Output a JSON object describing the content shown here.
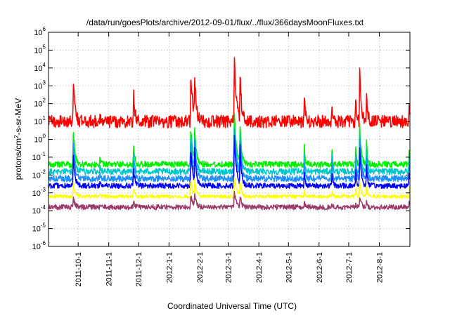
{
  "chart_data": {
    "type": "line",
    "title": "/data/run/goesPlots/archive/2012-09-01/flux/../flux/366daysMoonFluxes.txt",
    "xlabel": "Coordinated Universal Time (UTC)",
    "ylabel_parts": {
      "base": "protons/cm",
      "sup": "2",
      "rest": "-s-sr-MeV"
    },
    "x_range": [
      "2011-09-01",
      "2012-09-01"
    ],
    "x_ticks": [
      "2011-10-1",
      "2011-11-1",
      "2011-12-1",
      "2012-1-1",
      "2012-2-1",
      "2012-3-1",
      "2012-4-1",
      "2012-5-1",
      "2012-6-1",
      "2012-7-1",
      "2012-8-1"
    ],
    "y_scale": "log",
    "y_exponents": [
      -6,
      -5,
      -4,
      -3,
      -2,
      -1,
      0,
      1,
      2,
      3,
      4,
      5,
      6
    ],
    "y_tick_base": "10",
    "grid": true,
    "legend": "none",
    "events": [
      {
        "date": "2011-09-26",
        "height": 1.0
      },
      {
        "date": "2011-10-23",
        "height": 0.5
      },
      {
        "date": "2011-11-26",
        "height": 0.8
      },
      {
        "date": "2012-01-23",
        "height": 1.2
      },
      {
        "date": "2012-01-27",
        "height": 1.0
      },
      {
        "date": "2012-03-07",
        "height": 1.3
      },
      {
        "date": "2012-03-13",
        "height": 0.9
      },
      {
        "date": "2012-05-17",
        "height": 0.6
      },
      {
        "date": "2012-06-14",
        "height": 0.5
      },
      {
        "date": "2012-07-08",
        "height": 0.5
      },
      {
        "date": "2012-07-12",
        "height": 0.9
      },
      {
        "date": "2012-07-19",
        "height": 0.6
      },
      {
        "date": "2012-08-31",
        "height": 0.7
      }
    ],
    "series": [
      {
        "color": "#ff0000",
        "base": 1.0,
        "noise": 0.7,
        "peaks": [
          2.7,
          0.5,
          1.8,
          2.9,
          2.3,
          3.9,
          2.7,
          1.4,
          1.3,
          1.5,
          3.0,
          1.7,
          1.4
        ]
      },
      {
        "color": "#00ee00",
        "base": -1.4,
        "noise": 0.35,
        "peaks": [
          2.2,
          0.4,
          1.3,
          2.3,
          1.8,
          3.1,
          2.2,
          1.0,
          1.0,
          1.2,
          2.5,
          1.4,
          1.0
        ]
      },
      {
        "color": "#00c8c8",
        "base": -1.8,
        "noise": 0.35,
        "peaks": [
          2.0,
          0.4,
          1.2,
          2.2,
          1.7,
          3.0,
          2.1,
          0.9,
          0.9,
          1.1,
          2.4,
          1.3,
          0.9
        ]
      },
      {
        "color": "#1f8fff",
        "base": -2.2,
        "noise": 0.35,
        "peaks": [
          2.2,
          0.4,
          1.3,
          2.4,
          1.9,
          3.2,
          2.3,
          1.0,
          1.0,
          1.2,
          2.6,
          1.4,
          1.0
        ]
      },
      {
        "color": "#0000ff",
        "base": -2.6,
        "noise": 0.3,
        "peaks": [
          2.0,
          0.3,
          1.2,
          2.3,
          1.8,
          3.1,
          2.2,
          0.9,
          0.9,
          1.1,
          2.4,
          1.3,
          0.9
        ]
      },
      {
        "color": "#ffff00",
        "base": -3.2,
        "noise": 0.2,
        "peaks": [
          0.8,
          0.2,
          0.5,
          1.0,
          0.8,
          1.3,
          0.9,
          0.4,
          0.4,
          0.5,
          1.0,
          0.6,
          0.4
        ]
      },
      {
        "color": "#9a3a6a",
        "base": -3.8,
        "noise": 0.28,
        "peaks": [
          0.6,
          0.1,
          0.4,
          0.7,
          0.6,
          0.9,
          0.6,
          0.3,
          0.3,
          0.3,
          0.7,
          0.4,
          0.3
        ]
      }
    ]
  }
}
